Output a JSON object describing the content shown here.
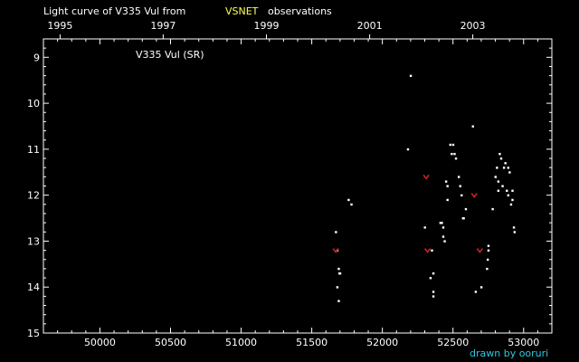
{
  "chart_data": {
    "type": "scatter",
    "title_prefix": "Light curve of V335 Vul from",
    "title_accent": "VSNET",
    "title_suffix": "observations",
    "series_label": "V335 Vul (SR)",
    "credit": "drawn by ooruri",
    "xlim": [
      49600,
      53200
    ],
    "ylim": [
      15,
      8.6
    ],
    "x_ticks": [
      50000,
      50500,
      51000,
      51500,
      52000,
      52500,
      53000
    ],
    "x_tick_labels": [
      "50000",
      "50500",
      "51000",
      "51500",
      "52000",
      "52500",
      "53000"
    ],
    "y_ticks": [
      9,
      10,
      11,
      12,
      13,
      14,
      15
    ],
    "y_tick_labels": [
      "9",
      "10",
      "11",
      "12",
      "13",
      "14",
      "15"
    ],
    "top_ticks": [
      49718,
      50448,
      51179,
      51910,
      52640
    ],
    "top_tick_labels": [
      "1995",
      "1997",
      "1999",
      "2001",
      "2003"
    ],
    "colors": {
      "background": "#000000",
      "axis": "#ffffff",
      "observation": "#ffffff",
      "upper_limit": "#cc2222",
      "accent": "#ffff55",
      "credit": "#2ec8e0"
    },
    "observations": [
      {
        "x": 51670,
        "y": 12.8
      },
      {
        "x": 51680,
        "y": 13.2
      },
      {
        "x": 51690,
        "y": 13.6
      },
      {
        "x": 51695,
        "y": 13.7
      },
      {
        "x": 51700,
        "y": 13.7
      },
      {
        "x": 51680,
        "y": 14.0
      },
      {
        "x": 51690,
        "y": 14.3
      },
      {
        "x": 51760,
        "y": 12.1
      },
      {
        "x": 51780,
        "y": 12.2
      },
      {
        "x": 52180,
        "y": 11.0
      },
      {
        "x": 52200,
        "y": 9.4
      },
      {
        "x": 52300,
        "y": 12.7
      },
      {
        "x": 52340,
        "y": 13.8
      },
      {
        "x": 52350,
        "y": 13.2
      },
      {
        "x": 52360,
        "y": 13.7
      },
      {
        "x": 52360,
        "y": 14.1
      },
      {
        "x": 52360,
        "y": 14.2
      },
      {
        "x": 52410,
        "y": 12.6
      },
      {
        "x": 52420,
        "y": 12.6
      },
      {
        "x": 52430,
        "y": 12.7
      },
      {
        "x": 52430,
        "y": 12.9
      },
      {
        "x": 52440,
        "y": 13.0
      },
      {
        "x": 52450,
        "y": 11.7
      },
      {
        "x": 52460,
        "y": 11.8
      },
      {
        "x": 52460,
        "y": 12.1
      },
      {
        "x": 52480,
        "y": 10.9
      },
      {
        "x": 52500,
        "y": 10.9
      },
      {
        "x": 52490,
        "y": 11.1
      },
      {
        "x": 52510,
        "y": 11.1
      },
      {
        "x": 52520,
        "y": 11.2
      },
      {
        "x": 52540,
        "y": 11.6
      },
      {
        "x": 52550,
        "y": 11.8
      },
      {
        "x": 52560,
        "y": 12.0
      },
      {
        "x": 52570,
        "y": 12.5
      },
      {
        "x": 52575,
        "y": 12.5
      },
      {
        "x": 52590,
        "y": 12.3
      },
      {
        "x": 52640,
        "y": 10.5
      },
      {
        "x": 52660,
        "y": 14.1
      },
      {
        "x": 52700,
        "y": 14.0
      },
      {
        "x": 52740,
        "y": 13.6
      },
      {
        "x": 52745,
        "y": 13.4
      },
      {
        "x": 52750,
        "y": 13.2
      },
      {
        "x": 52750,
        "y": 13.1
      },
      {
        "x": 52780,
        "y": 12.3
      },
      {
        "x": 52800,
        "y": 11.6
      },
      {
        "x": 52810,
        "y": 11.4
      },
      {
        "x": 52820,
        "y": 11.7
      },
      {
        "x": 52820,
        "y": 11.9
      },
      {
        "x": 52830,
        "y": 11.1
      },
      {
        "x": 52840,
        "y": 11.2
      },
      {
        "x": 52850,
        "y": 11.8
      },
      {
        "x": 52860,
        "y": 11.4
      },
      {
        "x": 52870,
        "y": 11.3
      },
      {
        "x": 52880,
        "y": 11.9
      },
      {
        "x": 52890,
        "y": 12.0
      },
      {
        "x": 52890,
        "y": 11.4
      },
      {
        "x": 52900,
        "y": 11.5
      },
      {
        "x": 52910,
        "y": 12.2
      },
      {
        "x": 52920,
        "y": 11.9
      },
      {
        "x": 52920,
        "y": 12.1
      },
      {
        "x": 52930,
        "y": 12.7
      },
      {
        "x": 52935,
        "y": 12.8
      }
    ],
    "upper_limits": [
      {
        "x": 51670,
        "y": 13.2
      },
      {
        "x": 52310,
        "y": 11.6
      },
      {
        "x": 52320,
        "y": 13.2
      },
      {
        "x": 52650,
        "y": 12.0
      },
      {
        "x": 52690,
        "y": 13.2
      }
    ]
  }
}
